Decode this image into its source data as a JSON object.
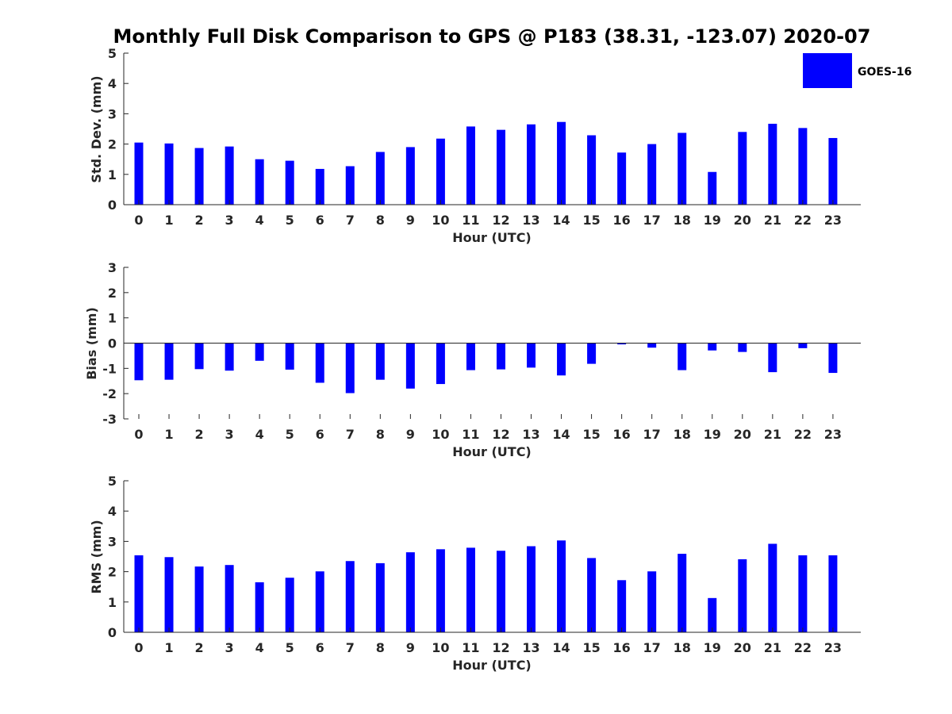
{
  "title": "Monthly Full Disk Comparison to GPS @ P183 (38.31, -123.07) 2020-07",
  "legend": {
    "label": "GOES-16",
    "color": "#0000ff"
  },
  "chart_data": [
    {
      "type": "bar",
      "categories": [
        "0",
        "1",
        "2",
        "3",
        "4",
        "5",
        "6",
        "7",
        "8",
        "9",
        "10",
        "11",
        "12",
        "13",
        "14",
        "15",
        "16",
        "17",
        "18",
        "19",
        "20",
        "21",
        "22",
        "23"
      ],
      "series": [
        {
          "name": "GOES-16",
          "color": "#0000ff",
          "values": [
            2.05,
            2.02,
            1.87,
            1.92,
            1.5,
            1.45,
            1.18,
            1.27,
            1.74,
            1.9,
            2.18,
            2.58,
            2.47,
            2.65,
            2.73,
            2.29,
            1.72,
            2.0,
            2.37,
            1.08,
            2.4,
            2.67,
            2.53,
            2.2
          ]
        }
      ],
      "xlabel": "Hour (UTC)",
      "ylabel": "Std. Dev. (mm)",
      "ylim": [
        0,
        5
      ],
      "yticks": [
        "0",
        "1",
        "2",
        "3",
        "4",
        "5"
      ],
      "legend_position": "top-right",
      "grid": false
    },
    {
      "type": "bar",
      "categories": [
        "0",
        "1",
        "2",
        "3",
        "4",
        "5",
        "6",
        "7",
        "8",
        "9",
        "10",
        "11",
        "12",
        "13",
        "14",
        "15",
        "16",
        "17",
        "18",
        "19",
        "20",
        "21",
        "22",
        "23"
      ],
      "series": [
        {
          "name": "GOES-16",
          "color": "#0000ff",
          "values": [
            -1.47,
            -1.45,
            -1.03,
            -1.09,
            -0.7,
            -1.05,
            -1.57,
            -1.98,
            -1.45,
            -1.8,
            -1.62,
            -1.07,
            -1.04,
            -0.97,
            -1.28,
            -0.82,
            -0.05,
            -0.18,
            -1.07,
            -0.29,
            -0.35,
            -1.15,
            -0.2,
            -1.18
          ]
        }
      ],
      "xlabel": "Hour (UTC)",
      "ylabel": "Bias (mm)",
      "ylim": [
        -3,
        3
      ],
      "yticks": [
        "-3",
        "-2",
        "-1",
        "0",
        "1",
        "2",
        "3"
      ],
      "grid": false
    },
    {
      "type": "bar",
      "categories": [
        "0",
        "1",
        "2",
        "3",
        "4",
        "5",
        "6",
        "7",
        "8",
        "9",
        "10",
        "11",
        "12",
        "13",
        "14",
        "15",
        "16",
        "17",
        "18",
        "19",
        "20",
        "21",
        "22",
        "23"
      ],
      "series": [
        {
          "name": "GOES-16",
          "color": "#0000ff",
          "values": [
            2.54,
            2.48,
            2.17,
            2.22,
            1.65,
            1.8,
            2.01,
            2.35,
            2.28,
            2.64,
            2.74,
            2.79,
            2.69,
            2.84,
            3.03,
            2.45,
            1.72,
            2.01,
            2.59,
            1.13,
            2.41,
            2.92,
            2.54,
            2.54
          ]
        }
      ],
      "xlabel": "Hour (UTC)",
      "ylabel": "RMS (mm)",
      "ylim": [
        0,
        5
      ],
      "yticks": [
        "0",
        "1",
        "2",
        "3",
        "4",
        "5"
      ],
      "grid": false
    }
  ]
}
